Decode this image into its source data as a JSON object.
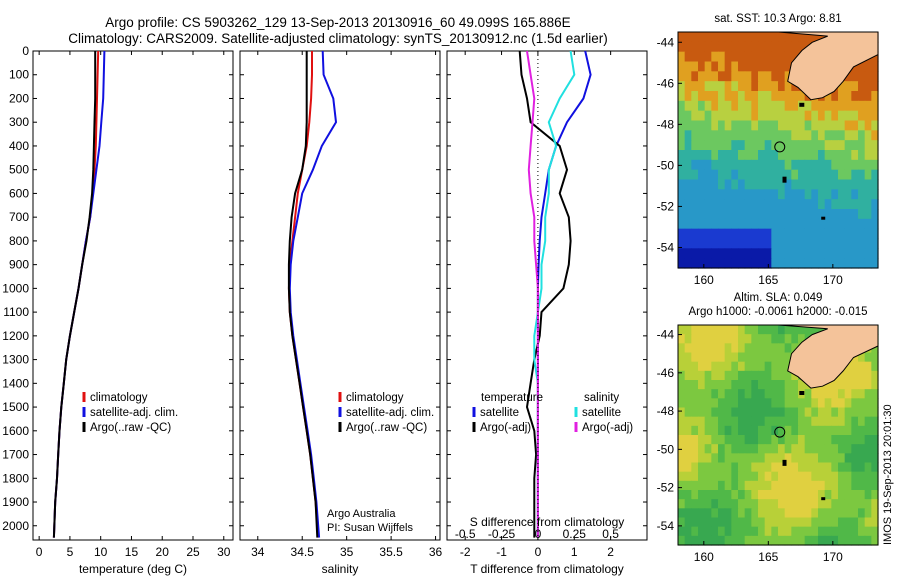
{
  "header": {
    "line1": "Argo profile: CS 5903262_129 13-Sep-2013 20130916_60 49.099S 165.886E",
    "line2": "Climatology: CARS2009. Satellite-adjusted climatology: synTS_20130912.nc (1.5d earlier)"
  },
  "footer": {
    "credit_line1": "Argo Australia",
    "credit_line2": "PI: Susan Wijffels",
    "side_stamp": "IMOS 19-Sep-2013 20:01:30"
  },
  "colors": {
    "climatology": "#e01010",
    "satellite": "#1010e0",
    "argo": "#000000",
    "salinity_satellite": "#20e0e0",
    "salinity_argo": "#e020e0",
    "land": "#f4c39a"
  },
  "chart_data": [
    {
      "type": "line",
      "id": "temperature",
      "xlabel": "temperature (deg C)",
      "xlim": [
        -1,
        31.5
      ],
      "xticks": [
        0,
        5,
        10,
        15,
        20,
        25,
        30
      ],
      "ylim": [
        2060,
        0
      ],
      "yticks": [
        0,
        100,
        200,
        300,
        400,
        500,
        600,
        700,
        800,
        900,
        1000,
        1100,
        1200,
        1300,
        1400,
        1500,
        1600,
        1700,
        1800,
        1900,
        2000
      ],
      "legend": [
        "climatology",
        "satellite-adj. clim.",
        "Argo(..raw -QC)"
      ],
      "series": [
        {
          "name": "climatology",
          "color": "#e01010",
          "x": [
            9.6,
            9.5,
            9.4,
            9.3,
            9.2,
            9.0,
            8.7,
            8.3,
            7.6,
            7.0,
            6.4,
            5.7,
            5.0,
            4.4,
            4.0,
            3.6,
            3.3,
            3.1,
            2.9,
            2.6,
            2.4
          ],
          "y": [
            0,
            100,
            200,
            300,
            400,
            500,
            600,
            700,
            800,
            900,
            1000,
            1100,
            1200,
            1300,
            1400,
            1500,
            1600,
            1700,
            1800,
            1900,
            2050
          ]
        },
        {
          "name": "satellite-adj. clim.",
          "color": "#1010e0",
          "x": [
            10.6,
            10.5,
            10.4,
            10.1,
            9.8,
            9.3,
            8.8,
            8.3,
            7.6,
            7.0,
            6.4,
            5.7,
            5.0,
            4.4,
            4.0,
            3.6,
            3.3,
            3.1,
            2.9,
            2.6,
            2.4
          ],
          "y": [
            0,
            100,
            200,
            300,
            400,
            500,
            600,
            700,
            800,
            900,
            1000,
            1100,
            1200,
            1300,
            1400,
            1500,
            1600,
            1700,
            1800,
            1900,
            2050
          ]
        },
        {
          "name": "Argo(..raw -QC)",
          "color": "#000000",
          "x": [
            9.1,
            9.1,
            9.1,
            9.0,
            8.9,
            8.8,
            8.6,
            8.2,
            7.7,
            7.0,
            6.4,
            5.7,
            5.0,
            4.4,
            4.0,
            3.6,
            3.3,
            3.1,
            2.9,
            2.6,
            2.4
          ],
          "y": [
            0,
            100,
            200,
            300,
            400,
            500,
            600,
            700,
            800,
            900,
            1000,
            1100,
            1200,
            1300,
            1400,
            1500,
            1600,
            1700,
            1800,
            1900,
            2050
          ]
        }
      ]
    },
    {
      "type": "line",
      "id": "salinity",
      "xlabel": "salinity",
      "xlim": [
        33.8,
        36.05
      ],
      "xticks": [
        34,
        34.5,
        35,
        35.5,
        36
      ],
      "ylim": [
        2060,
        0
      ],
      "legend": [
        "climatology",
        "satellite-adj. clim.",
        "Argo(..raw -QC)"
      ],
      "series": [
        {
          "name": "climatology",
          "color": "#e01010",
          "x": [
            34.61,
            34.61,
            34.6,
            34.58,
            34.55,
            34.5,
            34.45,
            34.42,
            34.39,
            34.36,
            34.35,
            34.36,
            34.39,
            34.43,
            34.47,
            34.51,
            34.55,
            34.59,
            34.62,
            34.65,
            34.68
          ],
          "y": [
            0,
            100,
            200,
            300,
            400,
            500,
            600,
            700,
            800,
            900,
            1000,
            1100,
            1200,
            1300,
            1400,
            1500,
            1600,
            1700,
            1800,
            1900,
            2050
          ]
        },
        {
          "name": "satellite-adj. clim.",
          "color": "#1010e0",
          "x": [
            34.73,
            34.74,
            34.85,
            34.88,
            34.72,
            34.62,
            34.5,
            34.45,
            34.4,
            34.37,
            34.36,
            34.37,
            34.4,
            34.44,
            34.48,
            34.52,
            34.56,
            34.6,
            34.63,
            34.66,
            34.69
          ],
          "y": [
            0,
            100,
            200,
            300,
            400,
            500,
            600,
            700,
            800,
            900,
            1000,
            1100,
            1200,
            1300,
            1400,
            1500,
            1600,
            1700,
            1800,
            1900,
            2050
          ]
        },
        {
          "name": "Argo(..raw -QC)",
          "color": "#000000",
          "x": [
            34.55,
            34.55,
            34.55,
            34.55,
            34.54,
            34.5,
            34.42,
            34.38,
            34.36,
            34.35,
            34.35,
            34.36,
            34.39,
            34.43,
            34.47,
            34.51,
            34.55,
            34.59,
            34.62,
            34.65,
            34.67
          ],
          "y": [
            0,
            100,
            200,
            300,
            400,
            500,
            600,
            700,
            800,
            900,
            1000,
            1100,
            1200,
            1300,
            1400,
            1500,
            1600,
            1700,
            1800,
            1900,
            2050
          ]
        }
      ]
    },
    {
      "type": "line",
      "id": "difference",
      "xlabel": "T difference from climatology",
      "xlabel2": "S difference from climatology",
      "xlim": [
        -2.5,
        3.0
      ],
      "xticks": [
        -2,
        -1,
        0,
        1,
        2
      ],
      "xticks_salinity": [
        "-0.5",
        "-0.25",
        "0",
        "0.25",
        "0.5"
      ],
      "xticks_salinity_pos": [
        -2,
        -1,
        0,
        1,
        2
      ],
      "ylim": [
        2060,
        0
      ],
      "legend_temperature_title": "temperature",
      "legend_salinity_title": "salinity",
      "legend_temperature": [
        "satellite",
        "Argo(-adj)"
      ],
      "legend_salinity": [
        "satellite",
        "Argo(-adj)"
      ],
      "series": [
        {
          "name": "satellite",
          "color": "#1010e0",
          "x": [
            1.3,
            1.45,
            1.25,
            0.8,
            0.5,
            0.3,
            0.2,
            0.1,
            0.05,
            0.02,
            0.0,
            0.0,
            0.0,
            0.0,
            0.0,
            0.0,
            0.0,
            0.0,
            0.0,
            0.0,
            0.0
          ],
          "y": [
            0,
            100,
            200,
            300,
            400,
            500,
            600,
            700,
            800,
            900,
            1000,
            1100,
            1200,
            1300,
            1400,
            1500,
            1600,
            1700,
            1800,
            1900,
            2050
          ]
        },
        {
          "name": "Argo(-adj)",
          "color": "#000000",
          "x": [
            -0.5,
            -0.45,
            -0.3,
            -0.2,
            0.6,
            0.8,
            0.6,
            0.85,
            0.9,
            0.85,
            0.7,
            0.1,
            0.05,
            -0.1,
            -0.2,
            -0.3,
            -0.1,
            -0.05,
            -0.1,
            -0.1,
            -0.1
          ],
          "y": [
            0,
            100,
            200,
            300,
            400,
            500,
            600,
            700,
            800,
            900,
            1000,
            1100,
            1200,
            1300,
            1400,
            1500,
            1600,
            1700,
            1800,
            1900,
            2050
          ]
        },
        {
          "name": "satellite",
          "color": "#20e0e0",
          "x": [
            0.9,
            1.0,
            0.6,
            0.3,
            0.5,
            0.3,
            0.3,
            0.2,
            0.2,
            0.1,
            0.1,
            0.0,
            -0.1,
            -0.1,
            0.0,
            0.0,
            0.0,
            0.0,
            0.0,
            0.0,
            0.0
          ],
          "y": [
            0,
            100,
            200,
            300,
            400,
            500,
            600,
            700,
            800,
            900,
            1000,
            1100,
            1200,
            1300,
            1400,
            1500,
            1600,
            1700,
            1800,
            1900,
            2050
          ]
        },
        {
          "name": "Argo(-adj)",
          "color": "#e020e0",
          "x": [
            -0.3,
            -0.2,
            -0.1,
            -0.15,
            -0.2,
            -0.25,
            -0.2,
            -0.1,
            -0.1,
            -0.05,
            0.0,
            0.0,
            0.0,
            0.0,
            0.0,
            0.0,
            0.0,
            0.0,
            0.0,
            0.0,
            0.0
          ],
          "y": [
            0,
            100,
            200,
            300,
            400,
            500,
            600,
            700,
            800,
            900,
            1000,
            1100,
            1200,
            1300,
            1400,
            1500,
            1600,
            1700,
            1800,
            1900,
            2050
          ]
        }
      ]
    },
    {
      "type": "heatmap",
      "id": "sst_map",
      "title": "sat. SST: 10.3 Argo: 8.81",
      "xlim": [
        158,
        173.5
      ],
      "ylim": [
        -55,
        -43.5
      ],
      "xticks": [
        160,
        165,
        170
      ],
      "yticks": [
        -44,
        -46,
        -48,
        -50,
        -52,
        -54
      ],
      "argo_position": {
        "lon": 165.886,
        "lat": -49.099
      }
    },
    {
      "type": "heatmap",
      "id": "sla_map",
      "title": "Altim. SLA: 0.049",
      "subtitle": "Argo h1000: -0.0061 h2000: -0.015",
      "xlim": [
        158,
        173.5
      ],
      "ylim": [
        -55,
        -43.5
      ],
      "xticks": [
        160,
        165,
        170
      ],
      "yticks": [
        -44,
        -46,
        -48,
        -50,
        -52,
        -54
      ],
      "argo_position": {
        "lon": 165.886,
        "lat": -49.099
      }
    }
  ]
}
